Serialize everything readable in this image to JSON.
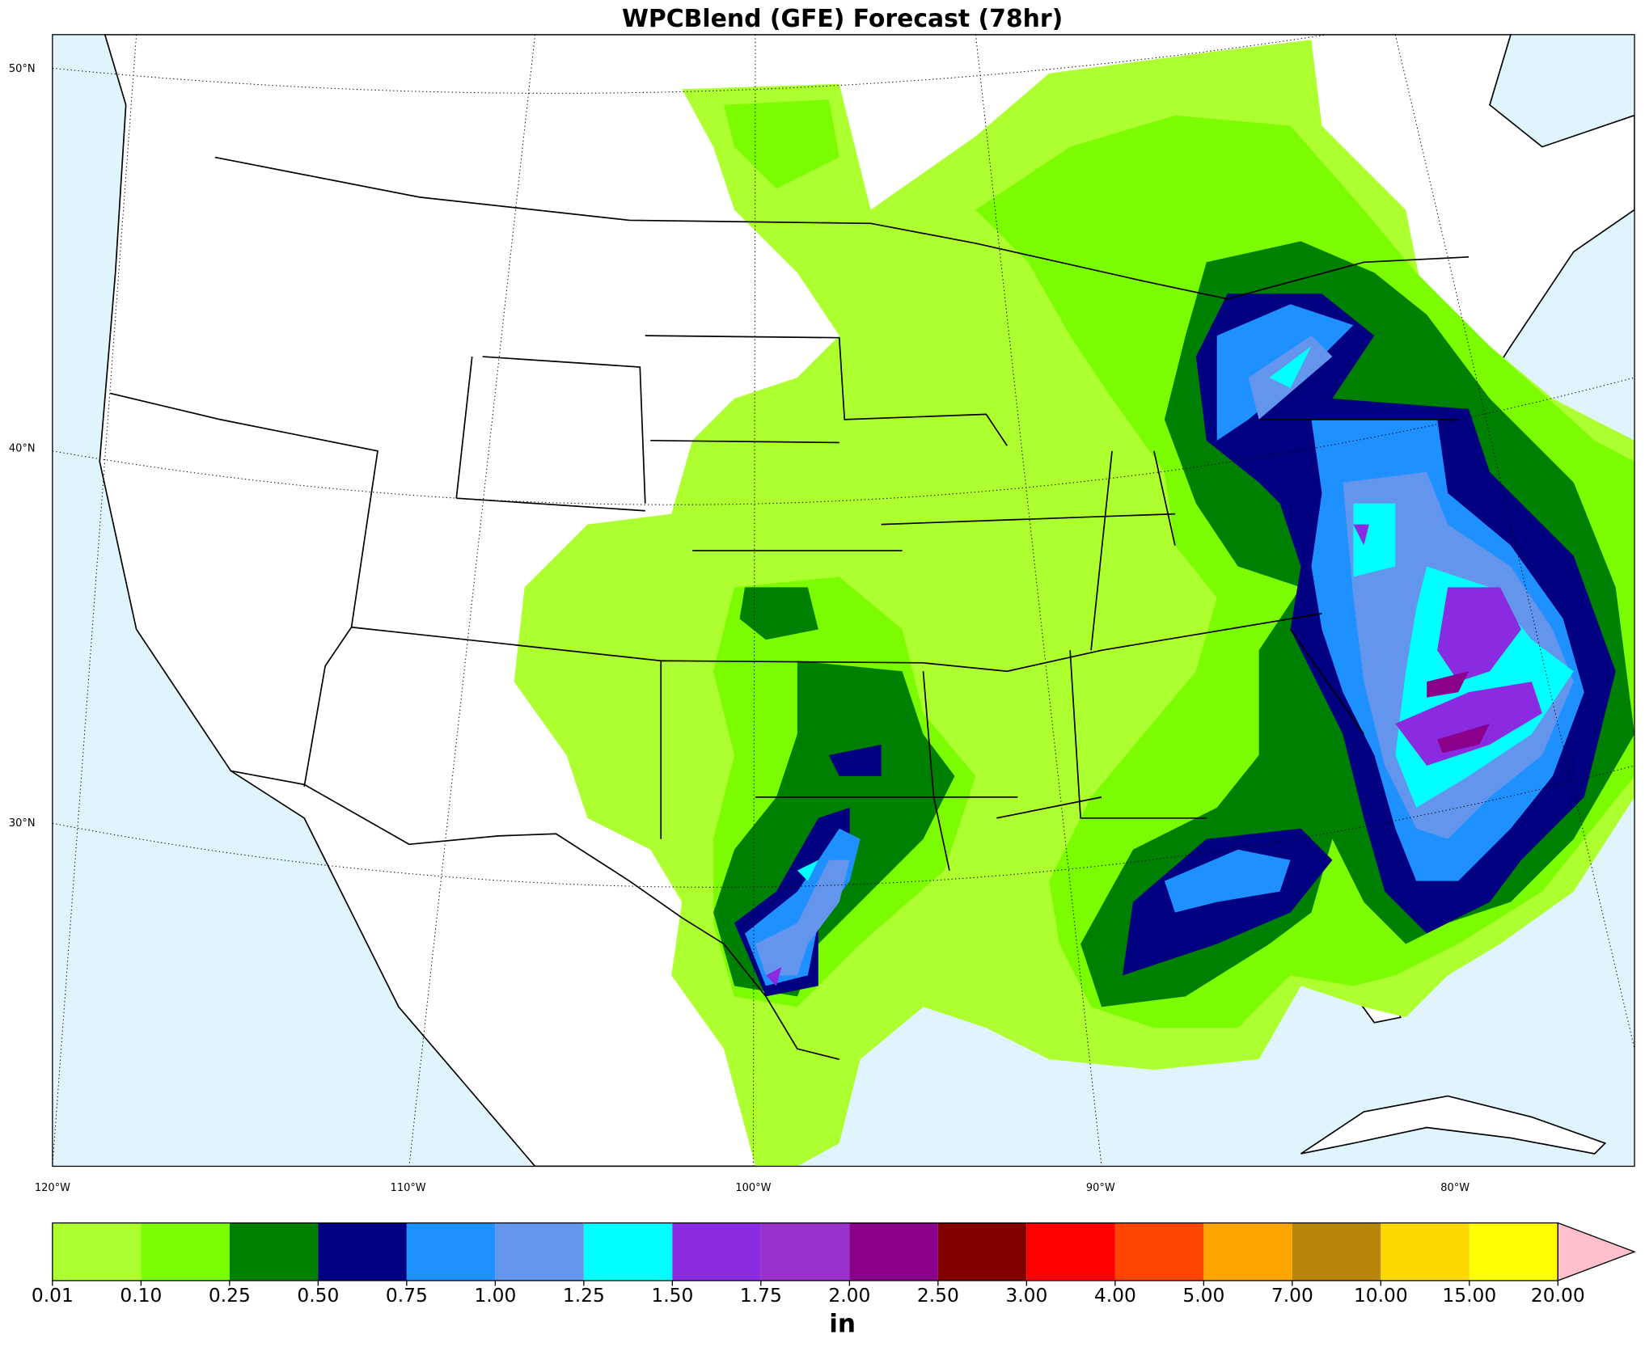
{
  "title": "WPCBlend (GFE) Forecast (78hr)",
  "map": {
    "lat_labels": [
      "50°N",
      "40°N",
      "30°N"
    ],
    "lon_labels": [
      "120°W",
      "110°W",
      "100°W",
      "90°W",
      "80°W"
    ]
  },
  "colorbar": {
    "levels": [
      {
        "value": 0.01,
        "label": "0.01"
      },
      {
        "value": 0.1,
        "label": "0.10"
      },
      {
        "value": 0.25,
        "label": "0.25"
      },
      {
        "value": 0.5,
        "label": "0.50"
      },
      {
        "value": 0.75,
        "label": "0.75"
      },
      {
        "value": 1,
        "label": "1.00"
      },
      {
        "value": 1.25,
        "label": "1.25"
      },
      {
        "value": 1.5,
        "label": "1.50"
      },
      {
        "value": 1.75,
        "label": "1.75"
      },
      {
        "value": 2,
        "label": "2.00"
      },
      {
        "value": 2.5,
        "label": "2.50"
      },
      {
        "value": 3,
        "label": "3.00"
      },
      {
        "value": 4,
        "label": "4.00"
      },
      {
        "value": 5,
        "label": "5.00"
      },
      {
        "value": 7,
        "label": "7.00"
      },
      {
        "value": 10,
        "label": "10.00"
      },
      {
        "value": 15,
        "label": "15.00"
      },
      {
        "value": 20,
        "label": "20.00"
      }
    ],
    "colors": [
      "#adff2f",
      "#7cfc00",
      "#008000",
      "#000080",
      "#1e90ff",
      "#6495ed",
      "#00ffff",
      "#8a2be2",
      "#9932cc",
      "#8b008b",
      "#800000",
      "#ff0000",
      "#ff4500",
      "#ffa500",
      "#b8860b",
      "#ffd700",
      "#ffff00"
    ],
    "extend_color": "#ffc0cb",
    "unit": "in"
  }
}
